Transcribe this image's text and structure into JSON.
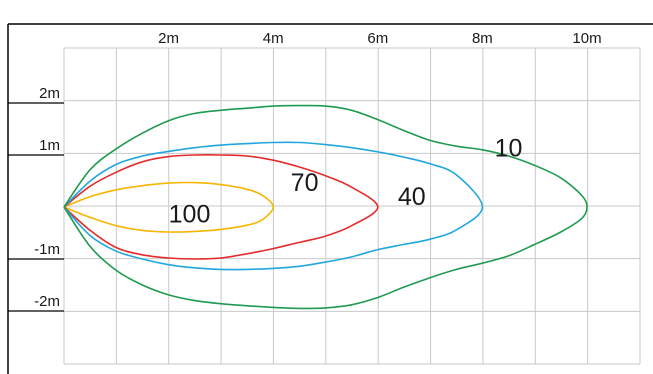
{
  "chart_data": {
    "type": "line",
    "title": "",
    "xlabel": "",
    "ylabel": "",
    "xlim": [
      0,
      10.7
    ],
    "ylim": [
      -3,
      3.5
    ],
    "grid": true,
    "x_ticks": [
      {
        "value": 2,
        "label": "2m"
      },
      {
        "value": 4,
        "label": "4m"
      },
      {
        "value": 6,
        "label": "6m"
      },
      {
        "value": 8,
        "label": "8m"
      },
      {
        "value": 10,
        "label": "10m"
      }
    ],
    "y_ticks": [
      {
        "value": 2,
        "label": "2m"
      },
      {
        "value": 1,
        "label": "1m"
      },
      {
        "value": -1,
        "label": "-1m"
      },
      {
        "value": -2,
        "label": "-2m"
      }
    ],
    "series": [
      {
        "name": "100",
        "color": "#f7b500",
        "label_at": [
          2.4,
          -0.17
        ],
        "points": [
          [
            0,
            0
          ],
          [
            0.5,
            0.2
          ],
          [
            1,
            0.33
          ],
          [
            1.5,
            0.41
          ],
          [
            2,
            0.46
          ],
          [
            2.5,
            0.47
          ],
          [
            3,
            0.43
          ],
          [
            3.5,
            0.34
          ],
          [
            3.8,
            0.22
          ],
          [
            4,
            0
          ],
          [
            3.8,
            -0.24
          ],
          [
            3.5,
            -0.35
          ],
          [
            3,
            -0.43
          ],
          [
            2.5,
            -0.47
          ],
          [
            2,
            -0.48
          ],
          [
            1.5,
            -0.45
          ],
          [
            1,
            -0.36
          ],
          [
            0.5,
            -0.2
          ],
          [
            0,
            0
          ]
        ]
      },
      {
        "name": "70",
        "color": "#e52b2b",
        "label_at": [
          4.6,
          0.43
        ],
        "points": [
          [
            0,
            0
          ],
          [
            0.5,
            0.4
          ],
          [
            1,
            0.67
          ],
          [
            1.5,
            0.87
          ],
          [
            2,
            0.97
          ],
          [
            2.5,
            1.0
          ],
          [
            3,
            1.0
          ],
          [
            3.5,
            0.98
          ],
          [
            4,
            0.9
          ],
          [
            4.5,
            0.77
          ],
          [
            5,
            0.6
          ],
          [
            5.5,
            0.38
          ],
          [
            6,
            0
          ],
          [
            5.5,
            -0.36
          ],
          [
            5,
            -0.56
          ],
          [
            4.5,
            -0.68
          ],
          [
            4,
            -0.8
          ],
          [
            3.5,
            -0.9
          ],
          [
            3,
            -0.98
          ],
          [
            2.5,
            -1.0
          ],
          [
            2,
            -0.98
          ],
          [
            1.5,
            -0.92
          ],
          [
            1,
            -0.78
          ],
          [
            0.5,
            -0.45
          ],
          [
            0,
            0
          ]
        ]
      },
      {
        "name": "40",
        "color": "#22a6e0",
        "label_at": [
          6.65,
          0.17
        ],
        "points": [
          [
            0,
            0
          ],
          [
            0.5,
            0.5
          ],
          [
            1,
            0.82
          ],
          [
            1.5,
            0.98
          ],
          [
            2,
            1.07
          ],
          [
            2.5,
            1.14
          ],
          [
            3,
            1.19
          ],
          [
            3.5,
            1.22
          ],
          [
            4,
            1.24
          ],
          [
            4.5,
            1.24
          ],
          [
            5,
            1.2
          ],
          [
            5.5,
            1.14
          ],
          [
            6,
            1.06
          ],
          [
            6.5,
            0.96
          ],
          [
            7,
            0.83
          ],
          [
            7.5,
            0.62
          ],
          [
            8,
            0
          ],
          [
            7.5,
            -0.44
          ],
          [
            7,
            -0.62
          ],
          [
            6.5,
            -0.72
          ],
          [
            6,
            -0.82
          ],
          [
            5.5,
            -0.96
          ],
          [
            5,
            -1.06
          ],
          [
            4.5,
            -1.14
          ],
          [
            4,
            -1.18
          ],
          [
            3.5,
            -1.2
          ],
          [
            3,
            -1.2
          ],
          [
            2.5,
            -1.17
          ],
          [
            2,
            -1.11
          ],
          [
            1.5,
            -1.0
          ],
          [
            1,
            -0.85
          ],
          [
            0.5,
            -0.55
          ],
          [
            0,
            0
          ]
        ]
      },
      {
        "name": "10",
        "color": "#1f9a4f",
        "label_at": [
          8.5,
          1.1
        ],
        "points": [
          [
            0,
            0
          ],
          [
            0.5,
            0.72
          ],
          [
            1,
            1.12
          ],
          [
            1.5,
            1.42
          ],
          [
            2,
            1.66
          ],
          [
            2.5,
            1.8
          ],
          [
            3,
            1.86
          ],
          [
            3.5,
            1.9
          ],
          [
            4,
            1.94
          ],
          [
            4.5,
            1.95
          ],
          [
            5,
            1.94
          ],
          [
            5.5,
            1.86
          ],
          [
            6,
            1.68
          ],
          [
            6.5,
            1.47
          ],
          [
            7,
            1.28
          ],
          [
            7.5,
            1.17
          ],
          [
            8,
            1.1
          ],
          [
            8.5,
            0.98
          ],
          [
            9,
            0.8
          ],
          [
            9.5,
            0.56
          ],
          [
            9.9,
            0.22
          ],
          [
            10,
            0
          ],
          [
            9.9,
            -0.22
          ],
          [
            9.5,
            -0.48
          ],
          [
            9,
            -0.72
          ],
          [
            8.5,
            -0.94
          ],
          [
            8,
            -1.08
          ],
          [
            7.5,
            -1.2
          ],
          [
            7,
            -1.36
          ],
          [
            6.5,
            -1.54
          ],
          [
            6,
            -1.74
          ],
          [
            5.5,
            -1.88
          ],
          [
            5,
            -1.94
          ],
          [
            4.5,
            -1.95
          ],
          [
            4,
            -1.93
          ],
          [
            3.5,
            -1.9
          ],
          [
            3,
            -1.86
          ],
          [
            2.5,
            -1.8
          ],
          [
            2,
            -1.69
          ],
          [
            1.5,
            -1.5
          ],
          [
            1,
            -1.22
          ],
          [
            0.5,
            -0.76
          ],
          [
            0,
            0
          ]
        ]
      }
    ]
  }
}
